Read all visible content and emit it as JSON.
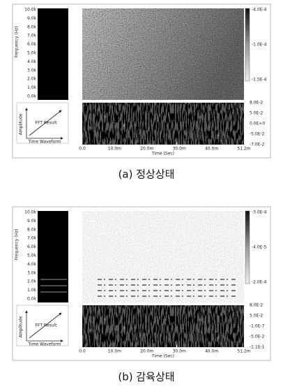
{
  "panels": [
    {
      "caption": "(a) 정상상태",
      "freq_label": "Frequency (Hz)",
      "freq_ticks": [
        "10.0k",
        "9.0k",
        "8.0k",
        "7.0k",
        "6.0k",
        "5.0k",
        "4.0k",
        "3.0k",
        "2.0k",
        "1.0k",
        "0.0k"
      ],
      "colorbar_labels": [
        "-4.0E-4",
        "-1.0E-4",
        "-1.5E-4"
      ],
      "amplitude_labels": [
        "8.0E-2",
        "5.0E-2",
        "0.0E+0",
        "-5.0E-2",
        "-7.0E-2"
      ],
      "time_ticks": [
        "0.0",
        "10.0m",
        "20.0m",
        "30.0m",
        "40.0m",
        "51.2m"
      ],
      "time_label": "Time (Sec)",
      "inset": {
        "y_label": "Amplitude",
        "x_label": "Time Waveform",
        "arrow_label": "FFT Result"
      }
    },
    {
      "caption": "(b) 감육상태",
      "freq_label": "Frequency (Hz)",
      "freq_ticks": [
        "10.0k",
        "9.0k",
        "8.0k",
        "7.0k",
        "6.0k",
        "5.0k",
        "4.0k",
        "3.0k",
        "2.0k",
        "1.0k",
        "0.0k"
      ],
      "colorbar_labels": [
        "-3.0E-4",
        "-4.0E-5",
        "-2.0E-4"
      ],
      "amplitude_labels": [
        "8.0E-2",
        "5.0E-2",
        "-1.0E-7",
        "-5.0E-2",
        "-1.1E-1"
      ],
      "time_ticks": [
        "0.0",
        "10.0m",
        "20.0m",
        "30.0m",
        "40.0m",
        "51.2m"
      ],
      "time_label": "Time (Sec)",
      "inset": {
        "y_label": "Amplitude",
        "x_label": "Time Waveform",
        "arrow_label": "FFT Result"
      }
    }
  ]
}
